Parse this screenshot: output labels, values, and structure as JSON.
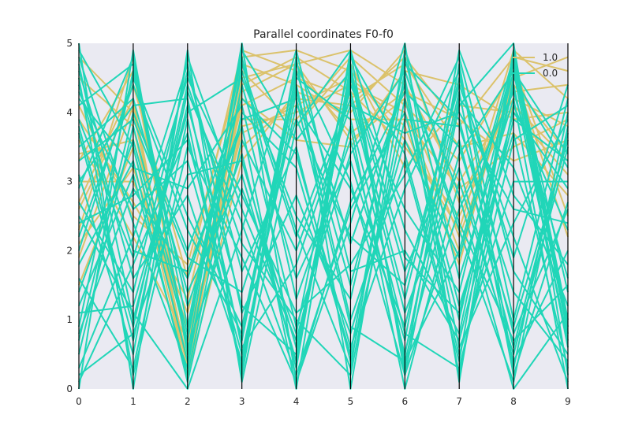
{
  "chart_data": {
    "type": "parallel_coordinates",
    "title": "Parallel coordinates F0-f0",
    "axes": [
      "0",
      "1",
      "2",
      "3",
      "4",
      "5",
      "6",
      "7",
      "8",
      "9"
    ],
    "ylim": [
      0,
      5
    ],
    "yticks": [
      "0",
      "1",
      "2",
      "3",
      "4",
      "5"
    ],
    "grid": false,
    "legend_position": "top-right",
    "series": [
      {
        "name": "1.0",
        "color": "#dbc26b",
        "lines": [
          [
            2.6,
            4.2,
            0.1,
            4.8,
            4.9,
            4.6,
            3.6,
            2.3,
            4.9,
            4.2
          ],
          [
            4.5,
            3.8,
            0.3,
            4.5,
            4.7,
            4.9,
            4.4,
            3.0,
            4.2,
            3.8
          ],
          [
            3.3,
            4.6,
            0.5,
            3.8,
            4.0,
            4.4,
            4.0,
            2.0,
            4.5,
            4.8
          ],
          [
            2.1,
            3.2,
            0.9,
            4.1,
            4.5,
            4.2,
            4.7,
            3.5,
            3.7,
            2.8
          ],
          [
            3.9,
            2.7,
            1.3,
            4.6,
            3.8,
            4.7,
            3.2,
            4.1,
            4.0,
            3.1
          ],
          [
            1.5,
            3.5,
            0.2,
            3.3,
            4.3,
            4.0,
            4.9,
            2.7,
            4.3,
            4.4
          ],
          [
            2.7,
            4.4,
            1.6,
            4.9,
            4.6,
            3.7,
            4.3,
            3.9,
            3.3,
            3.6
          ],
          [
            3.6,
            2.2,
            0.7,
            3.7,
            4.1,
            4.5,
            3.8,
            1.8,
            4.7,
            2.5
          ],
          [
            4.8,
            4.0,
            0.4,
            4.2,
            3.6,
            3.5,
            4.6,
            4.4,
            3.9,
            4.0
          ],
          [
            3.0,
            3.0,
            1.1,
            4.4,
            4.8,
            4.3,
            3.5,
            2.5,
            4.1,
            3.3
          ],
          [
            2.3,
            4.8,
            0.6,
            3.9,
            3.9,
            4.8,
            4.1,
            3.3,
            4.6,
            2.2
          ],
          [
            4.1,
            2.5,
            1.8,
            4.7,
            4.4,
            3.9,
            3.9,
            2.9,
            3.5,
            3.9
          ],
          [
            3.4,
            3.6,
            0.8,
            3.5,
            4.2,
            4.1,
            4.8,
            3.8,
            4.8,
            4.6
          ],
          [
            1.9,
            4.1,
            0.3,
            4.3,
            4.7,
            3.6,
            4.2,
            2.2,
            4.4,
            3.4
          ]
        ]
      },
      {
        "name": "0.0",
        "color": "#20d6b8",
        "lines": [
          [
            5.0,
            0.0,
            4.9,
            0.1,
            3.8,
            4.9,
            0.2,
            4.1,
            5.0,
            0.2
          ],
          [
            4.7,
            1.0,
            4.1,
            1.2,
            0.5,
            4.6,
            0.4,
            3.4,
            4.6,
            0.6
          ],
          [
            0.0,
            4.9,
            0.5,
            5.0,
            0.1,
            2.4,
            5.0,
            0.1,
            4.8,
            1.4
          ],
          [
            0.1,
            1.8,
            3.7,
            0.3,
            4.8,
            0.0,
            4.6,
            2.3,
            0.1,
            3.8
          ],
          [
            4.6,
            2.0,
            1.7,
            3.8,
            0.0,
            4.7,
            0.3,
            4.7,
            0.3,
            4.0
          ],
          [
            3.8,
            0.9,
            4.4,
            2.1,
            1.0,
            0.2,
            4.2,
            1.2,
            3.7,
            0.3
          ],
          [
            0.5,
            3.8,
            0.8,
            4.6,
            2.2,
            4.3,
            1.3,
            4.5,
            1.9,
            4.4
          ],
          [
            2.2,
            4.4,
            2.3,
            0.8,
            4.4,
            1.0,
            3.3,
            0.4,
            4.9,
            1.0
          ],
          [
            3.1,
            0.5,
            4.8,
            2.6,
            0.7,
            3.8,
            0.0,
            3.0,
            0.5,
            3.5
          ],
          [
            1.2,
            3.1,
            0.2,
            4.0,
            3.2,
            0.5,
            4.8,
            1.6,
            4.2,
            0.0
          ],
          [
            4.3,
            2.6,
            3.3,
            0.5,
            4.1,
            2.9,
            0.9,
            4.3,
            0.2,
            2.7
          ],
          [
            0.9,
            4.6,
            1.2,
            3.4,
            0.3,
            4.9,
            2.3,
            0.8,
            4.5,
            3.2
          ],
          [
            2.7,
            1.4,
            4.6,
            1.7,
            3.5,
            0.4,
            3.9,
            3.8,
            1.4,
            0.4
          ],
          [
            4.9,
            3.5,
            0.4,
            4.4,
            1.6,
            3.3,
            0.7,
            4.9,
            2.8,
            1.8
          ],
          [
            1.6,
            0.3,
            3.9,
            0.2,
            4.6,
            2.1,
            4.4,
            0.2,
            4.1,
            2.3
          ],
          [
            3.5,
            4.2,
            1.4,
            3.1,
            0.4,
            4.5,
            1.7,
            3.6,
            0.6,
            3.7
          ],
          [
            0.3,
            2.2,
            4.7,
            1.1,
            2.8,
            0.8,
            3.6,
            1.9,
            4.7,
            0.8
          ],
          [
            2.9,
            4.8,
            0.9,
            4.8,
            1.3,
            3.6,
            0.5,
            4.2,
            3.2,
            1.2
          ],
          [
            4.4,
            1.6,
            2.8,
            0.4,
            4.3,
            1.5,
            4.5,
            0.6,
            2.4,
            3.9
          ],
          [
            1.8,
            3.3,
            0.1,
            3.6,
            2.0,
            4.2,
            1.1,
            3.2,
            0.4,
            2.0
          ],
          [
            3.7,
            0.7,
            4.3,
            2.4,
            0.2,
            2.6,
            4.0,
            1.0,
            4.4,
            0.7
          ],
          [
            0.7,
            4.0,
            2.0,
            4.2,
            3.4,
            0.6,
            2.9,
            4.6,
            1.0,
            4.2
          ],
          [
            2.4,
            2.8,
            3.6,
            0.7,
            4.7,
            3.0,
            0.2,
            2.6,
            4.3,
            1.6
          ],
          [
            4.1,
            4.7,
            0.6,
            2.9,
            0.8,
            4.8,
            3.4,
            0.5,
            3.0,
            3.0
          ],
          [
            1.1,
            1.2,
            4.0,
            4.5,
            2.5,
            1.3,
            4.7,
            3.9,
            0.8,
            2.6
          ],
          [
            3.3,
            3.9,
            1.9,
            1.4,
            3.9,
            2.2,
            1.5,
            4.4,
            2.2,
            0.1
          ],
          [
            0.2,
            0.8,
            3.1,
            3.3,
            0.6,
            4.4,
            2.6,
            1.4,
            4.6,
            3.4
          ],
          [
            4.8,
            2.4,
            0.3,
            4.7,
            2.3,
            0.3,
            4.9,
            2.8,
            0.0,
            1.1
          ],
          [
            2.0,
            4.5,
            2.5,
            0.9,
            4.5,
            3.9,
            0.8,
            0.3,
            3.6,
            4.1
          ],
          [
            3.9,
            1.9,
            4.5,
            2.8,
            1.1,
            1.8,
            3.1,
            4.8,
            1.7,
            0.5
          ],
          [
            1.4,
            3.6,
            0.7,
            4.9,
            3.6,
            4.6,
            1.9,
            1.1,
            4.0,
            2.9
          ],
          [
            4.5,
            0.2,
            3.5,
            1.9,
            0.1,
            2.7,
            4.3,
            3.5,
            0.9,
            3.6
          ],
          [
            0.8,
            2.9,
            1.6,
            3.9,
            4.2,
            0.9,
            0.4,
            2.0,
            4.8,
            0.9
          ],
          [
            3.0,
            4.1,
            4.2,
            0.6,
            1.8,
            4.1,
            3.7,
            4.0,
            2.6,
            2.4
          ],
          [
            2.5,
            1.1,
            0.0,
            2.3,
            4.9,
            1.7,
            2.0,
            0.7,
            3.9,
            3.3
          ],
          [
            4.2,
            3.2,
            2.9,
            4.1,
            0.9,
            3.4,
            4.6,
            2.4,
            0.7,
            1.5
          ]
        ]
      }
    ]
  }
}
